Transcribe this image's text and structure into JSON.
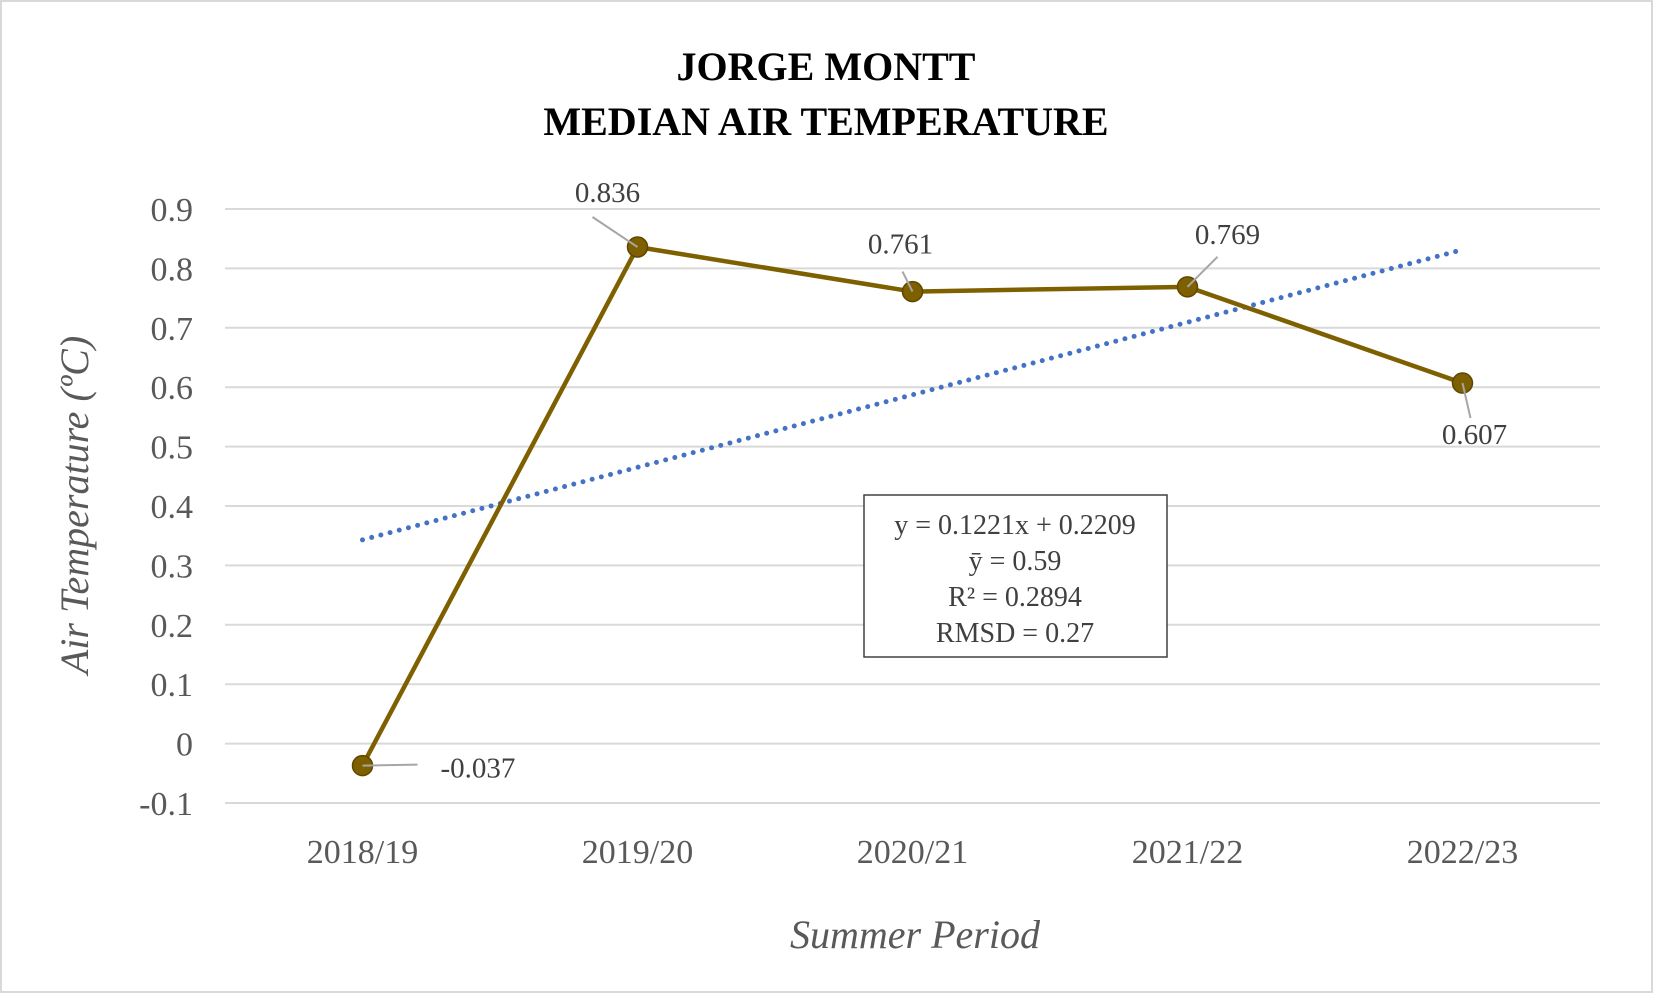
{
  "chart_data": {
    "type": "line",
    "title": [
      "JORGE MONTT",
      "MEDIAN AIR TEMPERATURE"
    ],
    "xlabel": "Summer Period",
    "ylabel": "Air Temperature (ºC)",
    "categories": [
      "2018/19",
      "2019/20",
      "2020/21",
      "2021/22",
      "2022/23"
    ],
    "series": [
      {
        "values": [
          -0.037,
          0.836,
          0.761,
          0.769,
          0.607
        ],
        "labels": [
          "-0.037",
          "0.836",
          "0.761",
          "0.769",
          "0.607"
        ],
        "color": "#7f6000"
      }
    ],
    "trendline": {
      "type": "linear",
      "slope": 0.1221,
      "intercept": 0.2209,
      "color": "#4472c4",
      "style": "dotted"
    },
    "annotation": [
      "y = 0.1221x + 0.2209",
      "ȳ = 0.59",
      "R² = 0.2894",
      "RMSD = 0.27"
    ],
    "ylim": [
      -0.1,
      0.9
    ],
    "yticks": [
      "-0.1",
      "0",
      "0.1",
      "0.2",
      "0.3",
      "0.4",
      "0.5",
      "0.6",
      "0.7",
      "0.8",
      "0.9"
    ],
    "grid": true,
    "legend": "none"
  }
}
